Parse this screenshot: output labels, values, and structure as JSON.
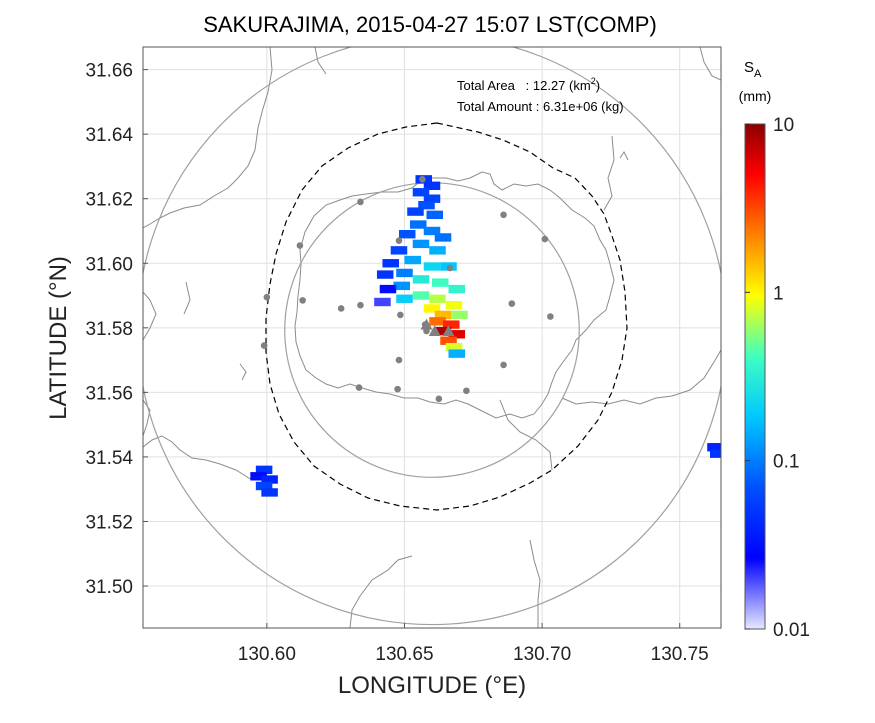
{
  "chart_data": {
    "type": "heatmap",
    "title": "SAKURAJIMA, 2015-04-27 15:07 LST(COMP)",
    "xlabel": "LONGITUDE (°E)",
    "ylabel": "LATITUDE (°N)",
    "xlim": [
      130.555,
      130.765
    ],
    "ylim": [
      31.487,
      31.667
    ],
    "xticks": [
      "130.60",
      "130.65",
      "130.70",
      "130.75"
    ],
    "yticks": [
      "31.50",
      "31.52",
      "31.54",
      "31.56",
      "31.58",
      "31.60",
      "31.62",
      "31.64",
      "31.66"
    ],
    "xtick_values": [
      130.6,
      130.65,
      130.7,
      130.75
    ],
    "ytick_values": [
      31.5,
      31.52,
      31.54,
      31.56,
      31.58,
      31.6,
      31.62,
      31.64,
      31.66
    ],
    "grid": true,
    "annotations": {
      "area_label": "Total Area   : 12.27 (km",
      "area_sup": "2",
      "area_close": ")",
      "amount_label": "Total Amount : 6.31e+06 (kg)"
    },
    "colorbar": {
      "label_main": "S",
      "label_sub": "A",
      "label_unit": "(mm)",
      "scale": "log",
      "ticks": [
        "10",
        "1",
        "0.1",
        "0.01"
      ],
      "tick_values": [
        10,
        1,
        0.1,
        0.01
      ],
      "colors": [
        "#8b0000",
        "#ff0000",
        "#ff8000",
        "#ffff00",
        "#80ff80",
        "#00ffff",
        "#0080ff",
        "#0000ff",
        "#e8e8ff"
      ]
    },
    "circles": [
      {
        "lon": 130.66,
        "lat": 31.5793,
        "r_deg": 0.0535,
        "style": "solid"
      },
      {
        "lon": 130.66,
        "lat": 31.5793,
        "r_deg": 0.107,
        "style": "solid"
      }
    ],
    "stations": [
      {
        "lon": 130.6565,
        "lat": 31.626
      },
      {
        "lon": 130.634,
        "lat": 31.619
      },
      {
        "lon": 130.686,
        "lat": 31.615
      },
      {
        "lon": 130.612,
        "lat": 31.6055
      },
      {
        "lon": 130.648,
        "lat": 31.607
      },
      {
        "lon": 130.701,
        "lat": 31.6075
      },
      {
        "lon": 130.6665,
        "lat": 31.5985
      },
      {
        "lon": 130.6,
        "lat": 31.5895
      },
      {
        "lon": 130.613,
        "lat": 31.5885
      },
      {
        "lon": 130.634,
        "lat": 31.587
      },
      {
        "lon": 130.689,
        "lat": 31.5875
      },
      {
        "lon": 130.627,
        "lat": 31.586
      },
      {
        "lon": 130.6485,
        "lat": 31.584
      },
      {
        "lon": 130.703,
        "lat": 31.5835
      },
      {
        "lon": 130.6575,
        "lat": 31.581
      },
      {
        "lon": 130.658,
        "lat": 31.579
      },
      {
        "lon": 130.599,
        "lat": 31.5745
      },
      {
        "lon": 130.648,
        "lat": 31.57
      },
      {
        "lon": 130.686,
        "lat": 31.5685
      },
      {
        "lon": 130.6335,
        "lat": 31.5615
      },
      {
        "lon": 130.6475,
        "lat": 31.561
      },
      {
        "lon": 130.6725,
        "lat": 31.5605
      },
      {
        "lon": 130.6625,
        "lat": 31.558
      }
    ],
    "vents": [
      {
        "lon": 130.658,
        "lat": 31.581
      },
      {
        "lon": 130.661,
        "lat": 31.579
      },
      {
        "lon": 130.666,
        "lat": 31.579
      }
    ],
    "plume_cells": [
      {
        "lon": 130.657,
        "lat": 31.626,
        "v": 0.05
      },
      {
        "lon": 130.66,
        "lat": 31.624,
        "v": 0.05
      },
      {
        "lon": 130.656,
        "lat": 31.622,
        "v": 0.06
      },
      {
        "lon": 130.66,
        "lat": 31.62,
        "v": 0.06
      },
      {
        "lon": 130.658,
        "lat": 31.618,
        "v": 0.07
      },
      {
        "lon": 130.654,
        "lat": 31.616,
        "v": 0.06
      },
      {
        "lon": 130.661,
        "lat": 31.615,
        "v": 0.08
      },
      {
        "lon": 130.655,
        "lat": 31.612,
        "v": 0.09
      },
      {
        "lon": 130.66,
        "lat": 31.61,
        "v": 0.1
      },
      {
        "lon": 130.664,
        "lat": 31.608,
        "v": 0.09
      },
      {
        "lon": 130.651,
        "lat": 31.609,
        "v": 0.07
      },
      {
        "lon": 130.656,
        "lat": 31.606,
        "v": 0.12
      },
      {
        "lon": 130.648,
        "lat": 31.604,
        "v": 0.06
      },
      {
        "lon": 130.662,
        "lat": 31.604,
        "v": 0.15
      },
      {
        "lon": 130.653,
        "lat": 31.601,
        "v": 0.14
      },
      {
        "lon": 130.645,
        "lat": 31.6,
        "v": 0.05
      },
      {
        "lon": 130.66,
        "lat": 31.599,
        "v": 0.22
      },
      {
        "lon": 130.666,
        "lat": 31.599,
        "v": 0.18
      },
      {
        "lon": 130.65,
        "lat": 31.597,
        "v": 0.1
      },
      {
        "lon": 130.643,
        "lat": 31.5965,
        "v": 0.05
      },
      {
        "lon": 130.656,
        "lat": 31.595,
        "v": 0.3
      },
      {
        "lon": 130.663,
        "lat": 31.594,
        "v": 0.4
      },
      {
        "lon": 130.649,
        "lat": 31.593,
        "v": 0.12
      },
      {
        "lon": 130.669,
        "lat": 31.592,
        "v": 0.35
      },
      {
        "lon": 130.656,
        "lat": 31.59,
        "v": 0.45
      },
      {
        "lon": 130.662,
        "lat": 31.589,
        "v": 0.7
      },
      {
        "lon": 130.65,
        "lat": 31.589,
        "v": 0.2
      },
      {
        "lon": 130.668,
        "lat": 31.587,
        "v": 0.9
      },
      {
        "lon": 130.66,
        "lat": 31.586,
        "v": 1.0
      },
      {
        "lon": 130.664,
        "lat": 31.584,
        "v": 1.5
      },
      {
        "lon": 130.67,
        "lat": 31.584,
        "v": 0.6
      },
      {
        "lon": 130.662,
        "lat": 31.582,
        "v": 2.5
      },
      {
        "lon": 130.667,
        "lat": 31.581,
        "v": 4.0
      },
      {
        "lon": 130.664,
        "lat": 31.579,
        "v": 8.0
      },
      {
        "lon": 130.669,
        "lat": 31.578,
        "v": 6.0
      },
      {
        "lon": 130.666,
        "lat": 31.576,
        "v": 3.0
      },
      {
        "lon": 130.668,
        "lat": 31.574,
        "v": 0.8
      },
      {
        "lon": 130.669,
        "lat": 31.572,
        "v": 0.15
      },
      {
        "lon": 130.644,
        "lat": 31.592,
        "v": 0.03
      },
      {
        "lon": 130.642,
        "lat": 31.588,
        "v": 0.02
      },
      {
        "lon": 130.599,
        "lat": 31.536,
        "v": 0.05
      },
      {
        "lon": 130.597,
        "lat": 31.534,
        "v": 0.03
      },
      {
        "lon": 130.601,
        "lat": 31.533,
        "v": 0.04
      },
      {
        "lon": 130.599,
        "lat": 31.531,
        "v": 0.06
      },
      {
        "lon": 130.601,
        "lat": 31.529,
        "v": 0.05
      },
      {
        "lon": 130.763,
        "lat": 31.543,
        "v": 0.04
      },
      {
        "lon": 130.764,
        "lat": 31.541,
        "v": 0.05
      }
    ]
  }
}
